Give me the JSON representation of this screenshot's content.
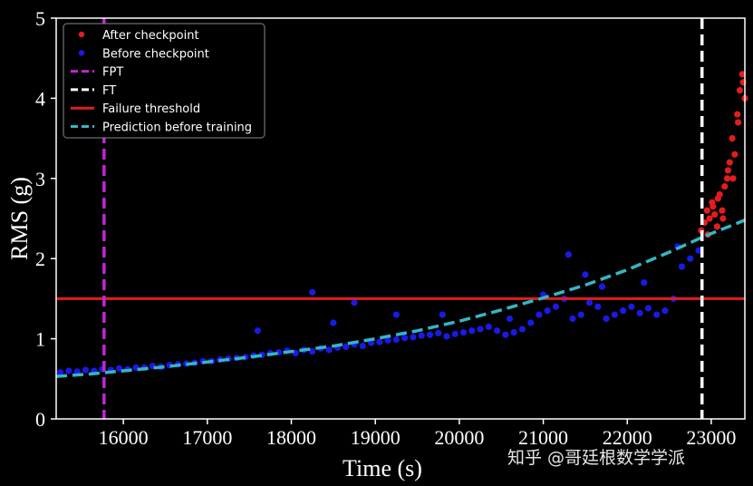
{
  "chart_data": {
    "type": "scatter",
    "xlabel": "Time (s)",
    "ylabel": "RMS (g)",
    "xlim": [
      15200,
      23400
    ],
    "ylim": [
      0,
      5
    ],
    "x_ticks": [
      16000,
      17000,
      18000,
      19000,
      20000,
      21000,
      22000,
      23000
    ],
    "y_ticks": [
      0,
      1,
      2,
      3,
      4,
      5
    ],
    "grid": false,
    "legend_position": "top-left",
    "colors": {
      "background": "#000000",
      "after_checkpoint": "#e11d1d",
      "before_checkpoint": "#1a1ae6",
      "fpt": "#c026d3",
      "ft": "#ffffff",
      "failure_threshold": "#e11d1d",
      "prediction": "#35b6c4"
    },
    "legend": [
      "After checkpoint",
      "Before checkpoint",
      "FPT",
      "FT",
      "Failure threshold",
      "Prediction before training"
    ],
    "vlines": {
      "fpt": 15770,
      "ft": 22890
    },
    "failure_threshold": 1.5,
    "prediction_curve": {
      "x": [
        15200,
        15600,
        16000,
        16500,
        17000,
        17500,
        18000,
        18500,
        19000,
        19500,
        20000,
        20500,
        21000,
        21500,
        22000,
        22500,
        22900,
        23400
      ],
      "y": [
        0.53,
        0.56,
        0.6,
        0.65,
        0.71,
        0.77,
        0.84,
        0.91,
        1.0,
        1.1,
        1.22,
        1.36,
        1.51,
        1.67,
        1.86,
        2.08,
        2.27,
        2.48
      ]
    },
    "series": [
      {
        "name": "Before checkpoint",
        "x": [
          15250,
          15350,
          15450,
          15550,
          15650,
          15750,
          15850,
          15950,
          16050,
          16150,
          16250,
          16350,
          16450,
          16550,
          16650,
          16750,
          16850,
          16950,
          17050,
          17150,
          17250,
          17350,
          17450,
          17550,
          17650,
          17750,
          17850,
          17950,
          18050,
          18150,
          18250,
          18350,
          18450,
          18550,
          18650,
          18750,
          18850,
          18950,
          19050,
          19150,
          19250,
          19350,
          19450,
          19550,
          19650,
          19750,
          19850,
          19950,
          20050,
          20150,
          20250,
          20350,
          20450,
          20550,
          20650,
          20750,
          20850,
          20950,
          21050,
          21150,
          21250,
          21350,
          21450,
          21550,
          21650,
          21750,
          21850,
          21950,
          22050,
          22150,
          22250,
          22350,
          22450,
          22550,
          22650,
          22750,
          22850,
          18250,
          18750,
          19250,
          21300,
          21700,
          22200,
          22600,
          21500,
          20600,
          19800,
          18500,
          17600,
          21000
        ],
        "y": [
          0.58,
          0.6,
          0.59,
          0.61,
          0.6,
          0.62,
          0.61,
          0.63,
          0.62,
          0.64,
          0.64,
          0.66,
          0.65,
          0.67,
          0.68,
          0.69,
          0.7,
          0.72,
          0.72,
          0.74,
          0.75,
          0.76,
          0.77,
          0.79,
          0.8,
          0.82,
          0.83,
          0.85,
          0.82,
          0.86,
          0.84,
          0.88,
          0.86,
          0.89,
          0.9,
          0.93,
          0.91,
          0.95,
          0.96,
          0.98,
          0.99,
          1.01,
          1.02,
          1.04,
          1.05,
          1.07,
          1.03,
          1.06,
          1.08,
          1.1,
          1.12,
          1.15,
          1.1,
          1.05,
          1.08,
          1.12,
          1.2,
          1.3,
          1.35,
          1.4,
          1.5,
          1.25,
          1.3,
          1.45,
          1.4,
          1.25,
          1.3,
          1.35,
          1.4,
          1.32,
          1.38,
          1.3,
          1.35,
          1.5,
          1.9,
          2.0,
          2.1,
          1.58,
          1.45,
          1.3,
          2.05,
          1.65,
          1.7,
          2.15,
          1.8,
          1.25,
          1.3,
          1.2,
          1.1,
          1.55
        ]
      },
      {
        "name": "After checkpoint",
        "x": [
          22880,
          22920,
          22950,
          22980,
          23010,
          23040,
          23070,
          23100,
          23130,
          23160,
          23190,
          23220,
          23250,
          23280,
          23310,
          23340,
          23370,
          23400,
          22960,
          23020,
          23080,
          23140,
          23200,
          23260,
          23320,
          23380
        ],
        "y": [
          2.35,
          2.45,
          2.6,
          2.5,
          2.7,
          2.55,
          2.4,
          2.8,
          2.6,
          2.9,
          3.0,
          3.2,
          3.5,
          3.3,
          3.8,
          4.1,
          4.3,
          4.0,
          2.3,
          2.65,
          2.75,
          2.5,
          3.1,
          3.0,
          3.7,
          4.2
        ]
      }
    ]
  },
  "watermark": "知乎 @哥廷根数学学派"
}
